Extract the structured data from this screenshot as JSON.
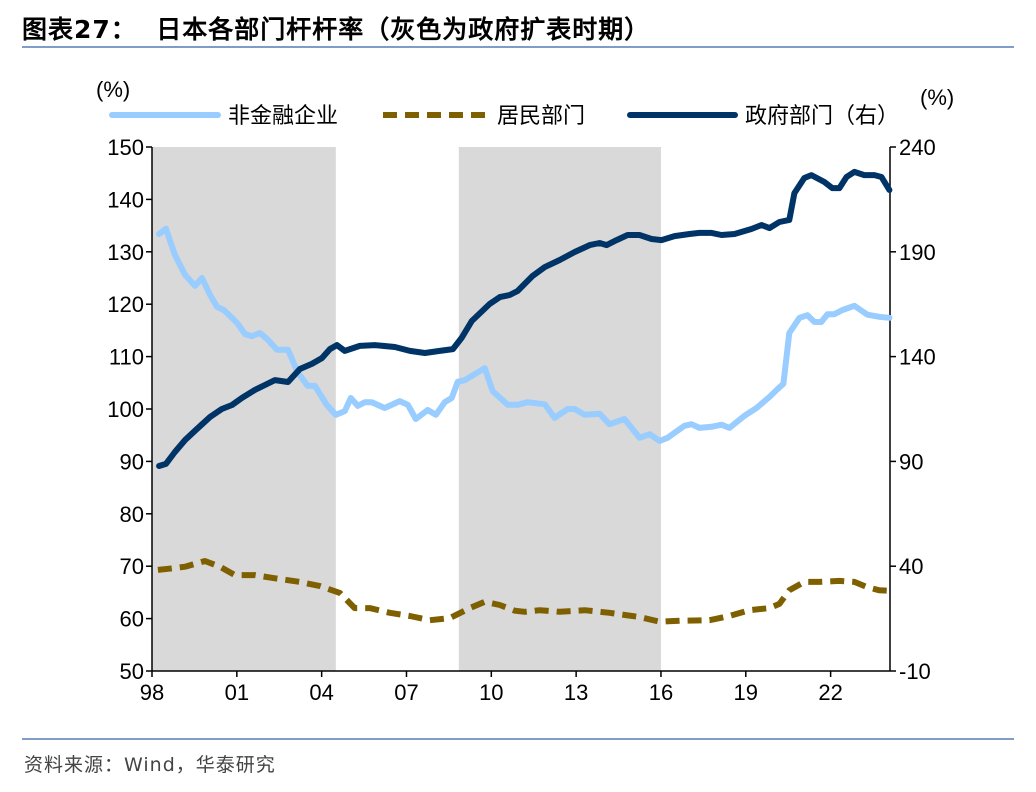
{
  "header": {
    "title": "图表27：  日本各部门杆杆率（灰色为政府扩表时期）"
  },
  "footer": {
    "source": "资料来源：Wind，华泰研究"
  },
  "chart_data": {
    "type": "line",
    "title": "图表27：  日本各部门杆杆率（灰色为政府扩表时期）",
    "ylabel_left": "(%)",
    "ylabel_right": "(%)",
    "x_ticks": [
      {
        "year": 1998,
        "label": "98"
      },
      {
        "year": 2001,
        "label": "01"
      },
      {
        "year": 2004,
        "label": "04"
      },
      {
        "year": 2007,
        "label": "07"
      },
      {
        "year": 2010,
        "label": "10"
      },
      {
        "year": 2013,
        "label": "13"
      },
      {
        "year": 2016,
        "label": "16"
      },
      {
        "year": 2019,
        "label": "19"
      },
      {
        "year": 2022,
        "label": "22"
      }
    ],
    "xlim": [
      1998,
      2024.1
    ],
    "ylim_left": [
      50,
      150
    ],
    "ylim_right": [
      -10,
      240
    ],
    "y_ticks_left": [
      50,
      60,
      70,
      80,
      90,
      100,
      110,
      120,
      130,
      140,
      150
    ],
    "y_ticks_right": [
      -10,
      40,
      90,
      140,
      190,
      240
    ],
    "grid": false,
    "legend_position": "top",
    "shaded_periods": [
      [
        1998,
        2004.5
      ],
      [
        2008.85,
        2016.0
      ]
    ],
    "shade_color": "#d9d9d9",
    "series": [
      {
        "name": "非金融企业",
        "axis": "left",
        "color": "#99ccff",
        "style": "solid",
        "points": [
          [
            1998.25,
            133.4
          ],
          [
            1998.49,
            134.4
          ],
          [
            1998.81,
            129.4
          ],
          [
            1999.17,
            125.6
          ],
          [
            1999.52,
            123.5
          ],
          [
            1999.77,
            125
          ],
          [
            2000.05,
            121.8
          ],
          [
            2000.3,
            119.5
          ],
          [
            2000.54,
            118.9
          ],
          [
            2000.83,
            117.4
          ],
          [
            2001.04,
            116.2
          ],
          [
            2001.29,
            114.3
          ],
          [
            2001.53,
            113.9
          ],
          [
            2001.82,
            114.5
          ],
          [
            2002.1,
            113.2
          ],
          [
            2002.42,
            111.3
          ],
          [
            2002.81,
            111.3
          ],
          [
            2003.16,
            106.9
          ],
          [
            2003.51,
            104.4
          ],
          [
            2003.76,
            104.4
          ],
          [
            2004.18,
            100.8
          ],
          [
            2004.5,
            98.9
          ],
          [
            2004.82,
            99.6
          ],
          [
            2005.03,
            102.1
          ],
          [
            2005.28,
            100.6
          ],
          [
            2005.53,
            101.3
          ],
          [
            2005.77,
            101.3
          ],
          [
            2006.23,
            100.2
          ],
          [
            2006.76,
            101.5
          ],
          [
            2007.05,
            100.8
          ],
          [
            2007.33,
            98.1
          ],
          [
            2007.75,
            99.8
          ],
          [
            2008.04,
            98.9
          ],
          [
            2008.35,
            101.3
          ],
          [
            2008.6,
            102.1
          ],
          [
            2008.81,
            105.2
          ],
          [
            2009.06,
            105.5
          ],
          [
            2009.77,
            107.8
          ],
          [
            2010.05,
            103.4
          ],
          [
            2010.58,
            100.8
          ],
          [
            2010.93,
            100.8
          ],
          [
            2011.29,
            101.3
          ],
          [
            2011.89,
            100.9
          ],
          [
            2012.24,
            98.3
          ],
          [
            2012.7,
            100
          ],
          [
            2012.95,
            100
          ],
          [
            2013.3,
            98.9
          ],
          [
            2013.83,
            99.1
          ],
          [
            2014.18,
            97.1
          ],
          [
            2014.71,
            98.1
          ],
          [
            2015.24,
            94.5
          ],
          [
            2015.6,
            95.2
          ],
          [
            2015.95,
            93.9
          ],
          [
            2016.23,
            94.5
          ],
          [
            2016.83,
            96.8
          ],
          [
            2017.08,
            97.1
          ],
          [
            2017.36,
            96.4
          ],
          [
            2017.79,
            96.6
          ],
          [
            2018.14,
            97
          ],
          [
            2018.42,
            96.4
          ],
          [
            2018.95,
            98.7
          ],
          [
            2019.38,
            100.2
          ],
          [
            2019.84,
            102.3
          ],
          [
            2020.12,
            103.8
          ],
          [
            2020.33,
            104.8
          ],
          [
            2020.54,
            114.5
          ],
          [
            2020.9,
            117.4
          ],
          [
            2021.18,
            117.9
          ],
          [
            2021.43,
            116.6
          ],
          [
            2021.67,
            116.6
          ],
          [
            2021.89,
            118.1
          ],
          [
            2022.13,
            118.1
          ],
          [
            2022.42,
            118.9
          ],
          [
            2022.84,
            119.7
          ],
          [
            2023.3,
            118
          ],
          [
            2023.72,
            117.6
          ],
          [
            2024.08,
            117.4
          ]
        ]
      },
      {
        "name": "居民部门",
        "axis": "left",
        "color": "#7f6000",
        "style": "dashed",
        "points": [
          [
            1998.21,
            69.3
          ],
          [
            1998.57,
            69.5
          ],
          [
            1999.17,
            69.9
          ],
          [
            1999.87,
            71
          ],
          [
            2000.4,
            69.9
          ],
          [
            2000.93,
            68.3
          ],
          [
            2001.64,
            68.3
          ],
          [
            2002.35,
            67.7
          ],
          [
            2003.23,
            67
          ],
          [
            2003.94,
            66.2
          ],
          [
            2004.64,
            64.9
          ],
          [
            2005.17,
            62
          ],
          [
            2005.7,
            62
          ],
          [
            2006.41,
            61.1
          ],
          [
            2007.12,
            60.5
          ],
          [
            2007.82,
            59.7
          ],
          [
            2008.53,
            60.1
          ],
          [
            2009.24,
            62
          ],
          [
            2009.77,
            63.2
          ],
          [
            2010.3,
            62.6
          ],
          [
            2010.83,
            61.5
          ],
          [
            2011.18,
            61.3
          ],
          [
            2011.71,
            61.6
          ],
          [
            2012.42,
            61.3
          ],
          [
            2013.3,
            61.6
          ],
          [
            2014.18,
            61.1
          ],
          [
            2015.24,
            60.3
          ],
          [
            2015.95,
            59.4
          ],
          [
            2016.66,
            59.6
          ],
          [
            2017.72,
            59.7
          ],
          [
            2018.42,
            60.5
          ],
          [
            2019.13,
            61.6
          ],
          [
            2019.84,
            62
          ],
          [
            2020.19,
            62.8
          ],
          [
            2020.54,
            65.4
          ],
          [
            2021.07,
            67
          ],
          [
            2021.6,
            67
          ],
          [
            2022.31,
            67.2
          ],
          [
            2022.84,
            67
          ],
          [
            2023.3,
            66
          ],
          [
            2023.72,
            65.4
          ],
          [
            2024.08,
            65.3
          ]
        ]
      },
      {
        "name": "政府部门（右）",
        "axis": "right",
        "color": "#003366",
        "style": "solid",
        "points": [
          [
            1998.25,
            87.8
          ],
          [
            1998.49,
            88.8
          ],
          [
            1998.81,
            94.5
          ],
          [
            1999.17,
            100.2
          ],
          [
            1999.55,
            105
          ],
          [
            2000.05,
            111.2
          ],
          [
            2000.47,
            115
          ],
          [
            2000.83,
            116.9
          ],
          [
            2001.18,
            120.3
          ],
          [
            2001.64,
            124.1
          ],
          [
            2001.99,
            126.4
          ],
          [
            2002.35,
            128.8
          ],
          [
            2002.81,
            127.9
          ],
          [
            2003.23,
            134.1
          ],
          [
            2003.65,
            136.5
          ],
          [
            2004.01,
            139.3
          ],
          [
            2004.29,
            143.6
          ],
          [
            2004.54,
            145.5
          ],
          [
            2004.82,
            142.7
          ],
          [
            2005.35,
            145.1
          ],
          [
            2005.88,
            145.5
          ],
          [
            2006.59,
            144.6
          ],
          [
            2007.12,
            142.7
          ],
          [
            2007.65,
            141.7
          ],
          [
            2008.18,
            142.7
          ],
          [
            2008.64,
            143.6
          ],
          [
            2008.95,
            148.9
          ],
          [
            2009.31,
            157
          ],
          [
            2009.94,
            165.1
          ],
          [
            2010.3,
            168.4
          ],
          [
            2010.65,
            169.4
          ],
          [
            2010.93,
            171.3
          ],
          [
            2011.46,
            178.5
          ],
          [
            2011.89,
            182.7
          ],
          [
            2012.42,
            186.1
          ],
          [
            2012.95,
            189.9
          ],
          [
            2013.48,
            193.2
          ],
          [
            2013.83,
            194.2
          ],
          [
            2014.08,
            193.2
          ],
          [
            2014.43,
            195.6
          ],
          [
            2014.82,
            198
          ],
          [
            2015.24,
            198
          ],
          [
            2015.67,
            196.1
          ],
          [
            2016.02,
            195.6
          ],
          [
            2016.48,
            197.5
          ],
          [
            2017.01,
            198.5
          ],
          [
            2017.36,
            199
          ],
          [
            2017.79,
            199
          ],
          [
            2018.14,
            198
          ],
          [
            2018.6,
            198.5
          ],
          [
            2019.2,
            200.9
          ],
          [
            2019.56,
            202.8
          ],
          [
            2019.84,
            201.3
          ],
          [
            2020.19,
            204.2
          ],
          [
            2020.54,
            205.2
          ],
          [
            2020.72,
            218
          ],
          [
            2021.07,
            225.2
          ],
          [
            2021.32,
            226.6
          ],
          [
            2021.78,
            223.3
          ],
          [
            2022.06,
            220.4
          ],
          [
            2022.31,
            220.4
          ],
          [
            2022.56,
            225.7
          ],
          [
            2022.84,
            228.1
          ],
          [
            2023.19,
            226.6
          ],
          [
            2023.55,
            226.6
          ],
          [
            2023.8,
            225.7
          ],
          [
            2024.08,
            219.5
          ]
        ]
      }
    ]
  }
}
